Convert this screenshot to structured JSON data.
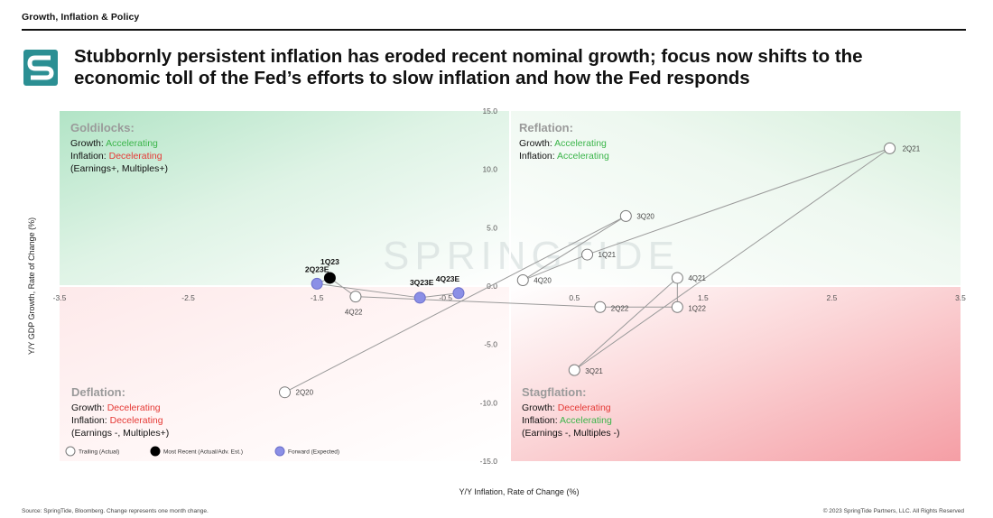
{
  "header": {
    "section_title": "Growth, Inflation & Policy",
    "headline_line1": "Stubbornly persistent inflation has eroded recent nominal growth; focus now shifts to the",
    "headline_line2": "economic toll of the Fed’s efforts to slow inflation and how the Fed responds"
  },
  "logo": {
    "icon": "springtide-logo-icon",
    "color": "#2b8f93"
  },
  "watermark": "SPRINGTIDE",
  "colors": {
    "accelerating": "#3bb54a",
    "decelerating": "#e53935",
    "goldilocks_bg": "#b6e6c9",
    "stagflation_bg": "#f7b3b8",
    "trailing": "#ffffff",
    "most_recent": "#000000",
    "forward": "#8b8fe6"
  },
  "quadrants": {
    "goldilocks": {
      "title": "Goldilocks:",
      "growth_label": "Growth:",
      "growth_value": "Accelerating",
      "inflation_label": "Inflation:",
      "inflation_value": "Decelerating",
      "note": "(Earnings+, Multiples+)"
    },
    "reflation": {
      "title": "Reflation:",
      "growth_label": "Growth:",
      "growth_value": "Accelerating",
      "inflation_label": "Inflation:",
      "inflation_value": "Accelerating",
      "note": ""
    },
    "deflation": {
      "title": "Deflation:",
      "growth_label": "Growth:",
      "growth_value": "Decelerating",
      "inflation_label": "Inflation:",
      "inflation_value": "Decelerating",
      "note": "(Earnings -, Multiples+)"
    },
    "stagflation": {
      "title": "Stagflation:",
      "growth_label": "Growth:",
      "growth_value": "Decelerating",
      "inflation_label": "Inflation:",
      "inflation_value": "Accelerating",
      "note": "(Earnings -, Multiples -)"
    }
  },
  "chart_data": {
    "type": "scatter",
    "xlabel": "Y/Y Inflation, Rate of Change (%)",
    "ylabel": "Y/Y GDP Growth, Rate of Change (%)",
    "xlim": [
      -3.5,
      3.5
    ],
    "ylim": [
      -15.0,
      15.0
    ],
    "x_ticks": [
      "-3.5",
      "-2.5",
      "-1.5",
      "-0.5",
      "0.5",
      "1.5",
      "2.5",
      "3.5"
    ],
    "y_ticks": [
      "15.0",
      "10.0",
      "5.0",
      "0.0",
      "-5.0",
      "-10.0",
      "-15.0"
    ],
    "series": [
      {
        "name": "Trailing (Actual)",
        "type": "trailing",
        "points": [
          {
            "label": "2Q20",
            "x": -1.75,
            "y": -9.1
          },
          {
            "label": "3Q20",
            "x": 0.9,
            "y": 6.0
          },
          {
            "label": "4Q20",
            "x": 0.1,
            "y": 0.5
          },
          {
            "label": "1Q21",
            "x": 0.6,
            "y": 2.7
          },
          {
            "label": "2Q21",
            "x": 2.95,
            "y": 11.8
          },
          {
            "label": "3Q21",
            "x": 0.5,
            "y": -7.2
          },
          {
            "label": "4Q21",
            "x": 1.3,
            "y": 0.7
          },
          {
            "label": "1Q22",
            "x": 1.3,
            "y": -1.8
          },
          {
            "label": "2Q22",
            "x": 0.7,
            "y": -1.8
          },
          {
            "label": "4Q22",
            "x": -1.2,
            "y": -0.9
          }
        ]
      },
      {
        "name": "Most Recent (Actual/Adv. Est.)",
        "type": "most_recent",
        "points": [
          {
            "label": "1Q23",
            "x": -1.4,
            "y": 0.7
          }
        ]
      },
      {
        "name": "Forward (Expected)",
        "type": "forward",
        "points": [
          {
            "label": "2Q23E",
            "x": -1.5,
            "y": 0.2
          },
          {
            "label": "3Q23E",
            "x": -0.7,
            "y": -1.0
          },
          {
            "label": "4Q23E",
            "x": -0.4,
            "y": -0.6
          }
        ]
      }
    ],
    "path_order": [
      "2Q20",
      "3Q20",
      "4Q20",
      "1Q21",
      "2Q21",
      "3Q21",
      "4Q21",
      "1Q22",
      "2Q22",
      "4Q22",
      "1Q23",
      "2Q23E",
      "3Q23E",
      "4Q23E"
    ]
  },
  "footer": {
    "source": "Source: SpringTide, Bloomberg. Change represents one month change.",
    "copyright": "© 2023 SpringTide Partners, LLC. All Rights Reserved"
  }
}
